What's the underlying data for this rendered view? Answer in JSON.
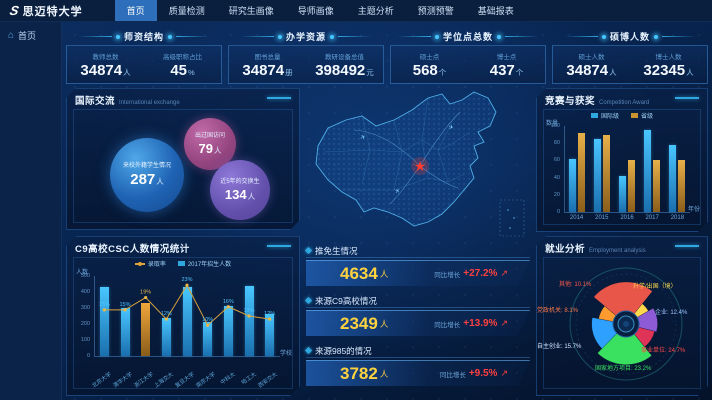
{
  "app": {
    "logo_icon": "S",
    "logo_text": "思迈特大学",
    "nav_items": [
      {
        "label": "首页",
        "active": true
      },
      {
        "label": "质量检测",
        "active": false
      },
      {
        "label": "研究生画像",
        "active": false
      },
      {
        "label": "导师画像",
        "active": false
      },
      {
        "label": "主题分析",
        "active": false
      },
      {
        "label": "预测预警",
        "active": false
      },
      {
        "label": "基础报表",
        "active": false
      }
    ],
    "sidebar": {
      "home_label": "首页"
    }
  },
  "top_cards": [
    {
      "title": "师资结构",
      "stats": [
        {
          "label": "教师总数",
          "value": "34874",
          "unit": "人"
        },
        {
          "label": "高级职称占比",
          "value": "45",
          "unit": "%"
        }
      ]
    },
    {
      "title": "办学资源",
      "stats": [
        {
          "label": "图书总量",
          "value": "34874",
          "unit": "册"
        },
        {
          "label": "教研设备总值",
          "value": "398492",
          "unit": "元"
        }
      ]
    },
    {
      "title": "学位点总数",
      "stats": [
        {
          "label": "硕士点",
          "value": "568",
          "unit": "个"
        },
        {
          "label": "博士点",
          "value": "437",
          "unit": "个"
        }
      ]
    },
    {
      "title": "硕博人数",
      "stats": [
        {
          "label": "硕士人数",
          "value": "34874",
          "unit": "人"
        },
        {
          "label": "博士人数",
          "value": "32345",
          "unit": "人"
        }
      ]
    }
  ],
  "international": {
    "title": "国际交流",
    "subtitle": "International exchange",
    "bubbles": [
      {
        "label": "来校外籍学生情况",
        "value": "287",
        "unit": "人",
        "style": "blue"
      },
      {
        "label": "出过国访问",
        "value": "79",
        "unit": "人",
        "style": "pink"
      },
      {
        "label": "近5年的交换生",
        "value": "134",
        "unit": "人",
        "style": "purple"
      }
    ]
  },
  "competition": {
    "title": "竞赛与获奖",
    "subtitle": "Competition Award"
  },
  "c9_panel": {
    "title": "C9高校CSC人数情况统计"
  },
  "center_stats": [
    {
      "title": "推免生情况",
      "value": "4634",
      "unit": "人",
      "growth_label": "同比增长",
      "growth": "+27.2%",
      "arrow": "↗"
    },
    {
      "title": "来源C9高校情况",
      "value": "2349",
      "unit": "人",
      "growth_label": "同比增长",
      "growth": "+13.9%",
      "arrow": "↗"
    },
    {
      "title": "来源985的情况",
      "value": "3782",
      "unit": "人",
      "growth_label": "同比增长",
      "growth": "+9.5%",
      "arrow": "↗"
    }
  ],
  "employment": {
    "title": "就业分析",
    "subtitle": "Employment analysis"
  },
  "colors": {
    "accent": "#2fa8e0",
    "gold_number": "#ffd23f",
    "growth_red": "#ff4040",
    "bar_blue": "#2fa8e0",
    "bar_gold": "#c8922e",
    "map_line": "#4fb0e8",
    "map_marker": "#ff3b30"
  },
  "chart_data": [
    {
      "id": "competition",
      "type": "bar",
      "title": "竞赛与获奖",
      "categories": [
        "2014",
        "2015",
        "2016",
        "2017",
        "2018"
      ],
      "series": [
        {
          "name": "国际级",
          "color": "#2fa8e0",
          "values": [
            62,
            85,
            42,
            95,
            78
          ]
        },
        {
          "name": "省级",
          "color": "#c8922e",
          "values": [
            92,
            90,
            60,
            60,
            60
          ]
        }
      ],
      "xlabel": "年份",
      "ylabel": "数量",
      "ylim": [
        0,
        100
      ],
      "yticks": [
        0,
        20,
        40,
        60,
        80,
        100
      ],
      "legend_position": "top",
      "grid": false
    },
    {
      "id": "c9",
      "type": "bar",
      "title": "C9高校CSC人数情况统计",
      "categories": [
        "北京大学",
        "清华大学",
        "浙江大学",
        "上海交大",
        "复旦大学",
        "南京大学",
        "中科大",
        "哈工大",
        "西安交大"
      ],
      "series": [
        {
          "name": "2017年招生人数",
          "kind": "bar",
          "color": "#2fa8e0",
          "values": [
            430,
            300,
            330,
            240,
            430,
            210,
            310,
            440,
            260
          ],
          "highlight_index": 2,
          "highlight_color": "#d78a28"
        },
        {
          "name": "录取率",
          "kind": "line",
          "color": "#e0a23a",
          "unit": "%",
          "values": [
            15,
            15,
            19,
            12,
            23,
            10,
            16,
            13,
            12
          ]
        }
      ],
      "xlabel": "学校",
      "ylabel": "人数",
      "ylim": [
        0,
        500
      ],
      "yticks": [
        0,
        100,
        200,
        300,
        400,
        500
      ],
      "legend_position": "top",
      "grid": false
    },
    {
      "id": "employment",
      "type": "pie",
      "rose": true,
      "title": "就业分析",
      "start_angle": -50,
      "slices": [
        {
          "name": "事业单位",
          "pct": 24.7,
          "color": "#e8564a",
          "label": "事业单位: 24.7%",
          "label_color": "#ff4a4a"
        },
        {
          "name": "升学/出国（境）",
          "pct": 5.8,
          "color": "#ffd84d",
          "label": "升学/出国（境）",
          "label_color": "#ffd84d"
        },
        {
          "name": "企业",
          "pct": 12.4,
          "color": "#8e5bd6",
          "label": "企业: 12.4%",
          "label_color": "#9fc6ff"
        },
        {
          "name": "其他",
          "pct": 10.1,
          "color": "#e03358",
          "label": "其他: 10.1%",
          "label_color": "#ff5a4a"
        },
        {
          "name": "国家地方项目",
          "pct": 23.2,
          "color": "#3ae05f",
          "label": "国家地方项目: 23.2%",
          "label_color": "#3ae05f"
        },
        {
          "name": "自主创业",
          "pct": 15.7,
          "color": "#2ea0ff",
          "label": "自主创业: 15.7%",
          "label_color": "#cfe6ff"
        },
        {
          "name": "党政机关",
          "pct": 8.1,
          "color": "#ff9a2e",
          "label": "党政机关: 8.1%",
          "label_color": "#ff7a4a"
        }
      ]
    }
  ]
}
